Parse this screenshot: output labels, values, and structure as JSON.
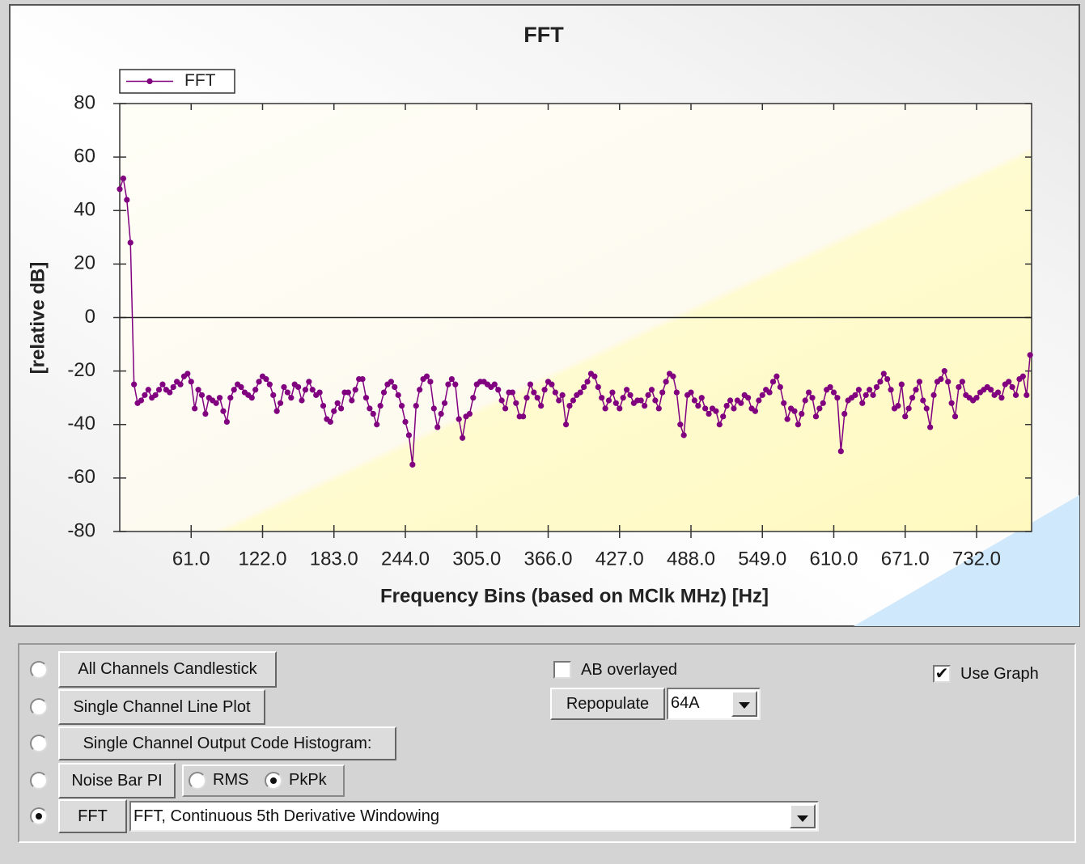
{
  "chart_data": {
    "type": "line",
    "title": "FFT",
    "x_label": "Frequency Bins (based on MClk MHz) [Hz]",
    "y_label": "[relative dB]",
    "xlim": [
      0,
      779
    ],
    "ylim": [
      -80,
      80
    ],
    "yticks": [
      -80,
      -60,
      -40,
      -20,
      0,
      20,
      40,
      60,
      80
    ],
    "xticks": [
      {
        "value": 61,
        "label": "61.0"
      },
      {
        "value": 122,
        "label": "122.0"
      },
      {
        "value": 183,
        "label": "183.0"
      },
      {
        "value": 244,
        "label": "244.0"
      },
      {
        "value": 305,
        "label": "305.0"
      },
      {
        "value": 366,
        "label": "366.0"
      },
      {
        "value": 427,
        "label": "427.0"
      },
      {
        "value": 488,
        "label": "488.0"
      },
      {
        "value": 549,
        "label": "549.0"
      },
      {
        "value": 610,
        "label": "610.0"
      },
      {
        "value": 671,
        "label": "671.0"
      },
      {
        "value": 732,
        "label": "732.0"
      }
    ],
    "zero_line": true,
    "legend": "top-left",
    "x": [
      0,
      3.05,
      6.1,
      9.15,
      12.2,
      15.25,
      18.3,
      21.35,
      24.4,
      27.45,
      30.5,
      33.55,
      36.6,
      39.65,
      42.7,
      45.75,
      48.8,
      51.85,
      54.9,
      57.95,
      61,
      64.05,
      67.1,
      70.15,
      73.2,
      76.25,
      79.3,
      82.35,
      85.4,
      88.45,
      91.5,
      94.55,
      97.6,
      100.65,
      103.7,
      106.75,
      109.8,
      112.85,
      115.9,
      118.95,
      122,
      125.05,
      128.1,
      131.15,
      134.2,
      137.25,
      140.3,
      143.35,
      146.4,
      149.45,
      152.5,
      155.55,
      158.6,
      161.65,
      164.7,
      167.75,
      170.8,
      173.85,
      176.9,
      179.95,
      183,
      186.05,
      189.1,
      192.15,
      195.2,
      198.25,
      201.3,
      204.35,
      207.4,
      210.45,
      213.5,
      216.55,
      219.6,
      222.65,
      225.7,
      228.75,
      231.8,
      234.85,
      237.9,
      240.95,
      244,
      247.05,
      250.1,
      253.15,
      256.2,
      259.25,
      262.3,
      265.35,
      268.4,
      271.45,
      274.5,
      277.55,
      280.6,
      283.65,
      286.7,
      289.75,
      292.8,
      295.85,
      298.9,
      301.95,
      305,
      308.05,
      311.1,
      314.15,
      317.2,
      320.25,
      323.3,
      326.35,
      329.4,
      332.45,
      335.5,
      338.55,
      341.6,
      344.65,
      347.7,
      350.75,
      353.8,
      356.85,
      359.9,
      362.95,
      366,
      369.05,
      372.1,
      375.15,
      378.2,
      381.25,
      384.3,
      387.35,
      390.4,
      393.45,
      396.5,
      399.55,
      402.6,
      405.65,
      408.7,
      411.75,
      414.8,
      417.85,
      420.9,
      423.95,
      427,
      430.05,
      433.1,
      436.15,
      439.2,
      442.25,
      445.3,
      448.35,
      451.4,
      454.45,
      457.5,
      460.55,
      463.6,
      466.65,
      469.7,
      472.75,
      475.8,
      478.85,
      481.9,
      484.95,
      488,
      491.05,
      494.1,
      497.15,
      500.2,
      503.25,
      506.3,
      509.35,
      512.4,
      515.45,
      518.5,
      521.55,
      524.6,
      527.65,
      530.7,
      533.75,
      536.8,
      539.85,
      542.9,
      545.95,
      549,
      552.05,
      555.1,
      558.15,
      561.2,
      564.25,
      567.3,
      570.35,
      573.4,
      576.45,
      579.5,
      582.55,
      585.6,
      588.65,
      591.7,
      594.75,
      597.8,
      600.85,
      603.9,
      606.95,
      610,
      613.05,
      616.1,
      619.15,
      622.2,
      625.25,
      628.3,
      631.35,
      634.4,
      637.45,
      640.5,
      643.55,
      646.6,
      649.65,
      652.7,
      655.75,
      658.8,
      661.85,
      664.9,
      667.95,
      671,
      674.05,
      677.1,
      680.15,
      683.2,
      686.25,
      689.3,
      692.35,
      695.4,
      698.45,
      701.5,
      704.55,
      707.6,
      710.65,
      713.7,
      716.75,
      719.8,
      722.85,
      725.9,
      728.95,
      732,
      735.05,
      738.1,
      741.15,
      744.2,
      747.25,
      750.3,
      753.35,
      756.4,
      759.45,
      762.5,
      765.55,
      768.6,
      771.65,
      774.7,
      777.75
    ],
    "series": [
      {
        "name": "FFT",
        "color": "#800080",
        "values": [
          48,
          52,
          44,
          28,
          -25,
          -32,
          -31,
          -29,
          -27,
          -30,
          -29,
          -27,
          -25,
          -27,
          -28,
          -26,
          -24,
          -25,
          -22,
          -21,
          -24,
          -34,
          -27,
          -29,
          -36,
          -30,
          -31,
          -32,
          -30,
          -35,
          -39,
          -30,
          -27,
          -25,
          -26,
          -28,
          -29,
          -30,
          -27,
          -24,
          -22,
          -23,
          -25,
          -29,
          -35,
          -32,
          -26,
          -28,
          -30,
          -25,
          -26,
          -31,
          -27,
          -24,
          -27,
          -29,
          -28,
          -33,
          -38,
          -39,
          -35,
          -32,
          -34,
          -28,
          -28,
          -31,
          -27,
          -23,
          -23,
          -30,
          -34,
          -36,
          -40,
          -33,
          -28,
          -25,
          -24,
          -26,
          -29,
          -33,
          -39,
          -44,
          -55,
          -33,
          -27,
          -23,
          -22,
          -24,
          -34,
          -41,
          -36,
          -32,
          -25,
          -23,
          -25,
          -38,
          -45,
          -37,
          -36,
          -30,
          -25,
          -24,
          -24,
          -25,
          -26,
          -25,
          -27,
          -31,
          -34,
          -28,
          -28,
          -32,
          -37,
          -37,
          -30,
          -25,
          -28,
          -30,
          -33,
          -27,
          -24,
          -25,
          -28,
          -31,
          -29,
          -40,
          -33,
          -31,
          -29,
          -28,
          -26,
          -24,
          -21,
          -22,
          -26,
          -30,
          -34,
          -31,
          -28,
          -32,
          -34,
          -30,
          -27,
          -29,
          -32,
          -31,
          -31,
          -33,
          -29,
          -27,
          -31,
          -34,
          -28,
          -24,
          -21,
          -22,
          -28,
          -40,
          -44,
          -29,
          -28,
          -31,
          -33,
          -30,
          -34,
          -36,
          -34,
          -35,
          -40,
          -37,
          -33,
          -31,
          -34,
          -31,
          -32,
          -29,
          -30,
          -34,
          -35,
          -31,
          -29,
          -27,
          -28,
          -24,
          -22,
          -26,
          -32,
          -38,
          -34,
          -35,
          -40,
          -36,
          -31,
          -28,
          -30,
          -37,
          -34,
          -32,
          -27,
          -26,
          -28,
          -30,
          -50,
          -36,
          -31,
          -30,
          -29,
          -27,
          -32,
          -29,
          -27,
          -29,
          -26,
          -24,
          -21,
          -23,
          -27,
          -34,
          -33,
          -25,
          -37,
          -34,
          -30,
          -27,
          -24,
          -31,
          -34,
          -41,
          -29,
          -24,
          -23,
          -20,
          -24,
          -32,
          -37,
          -26,
          -24,
          -29,
          -30,
          -31,
          -30,
          -28,
          -27,
          -26,
          -27,
          -29,
          -28,
          -30,
          -25,
          -24,
          -26,
          -29,
          -23,
          -22,
          -29,
          -14
        ]
      }
    ]
  },
  "controls": {
    "plot_modes": [
      {
        "label": "All Channels Candlestick",
        "selected": false
      },
      {
        "label": "Single  Channel  Line  Plot",
        "selected": false
      },
      {
        "label": "Single Channel Output Code Histogram:",
        "selected": false
      },
      {
        "label": "Noise Bar PI",
        "selected": false
      },
      {
        "label": "FFT",
        "selected": true
      }
    ],
    "noise_options": [
      {
        "label": "RMS",
        "selected": false
      },
      {
        "label": "PkPk",
        "selected": true
      }
    ],
    "window_select": "FFT, Continuous 5th Derivative Windowing",
    "ab_overlayed": {
      "label": "AB overlayed",
      "checked": false
    },
    "repopulate": "Repopulate",
    "channel_select": "64A",
    "use_graph": {
      "label": "Use Graph",
      "checked": true
    }
  }
}
